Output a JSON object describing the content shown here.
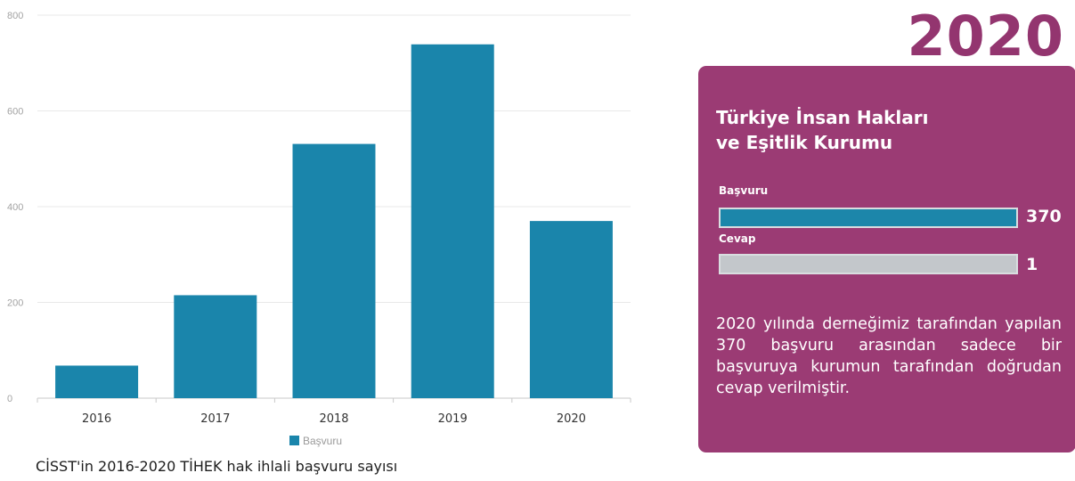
{
  "chart_data": {
    "type": "bar",
    "categories": [
      "2016",
      "2017",
      "2018",
      "2019",
      "2020"
    ],
    "series": [
      {
        "name": "Başvuru",
        "values": [
          68,
          215,
          531,
          739,
          370
        ],
        "color": "#1a85ab"
      }
    ],
    "ylim": [
      0,
      800
    ],
    "yticks": [
      0,
      200,
      400,
      600,
      800
    ],
    "grid": true,
    "legend_position": "bottom-center"
  },
  "caption": "CİSST'in 2016-2020 TİHEK hak ihlali başvuru sayısı",
  "side_panel": {
    "year": "2020",
    "title_lines": [
      "Türkiye İnsan Hakları",
      "ve Eşitlik Kurumu"
    ],
    "metrics": [
      {
        "label": "Başvuru",
        "value": 370,
        "value_text": "370",
        "fill_fraction": 1.0,
        "color": "#1c86aa"
      },
      {
        "label": "Cevap",
        "value": 1,
        "value_text": "1",
        "fill_fraction": 1.0,
        "color": "#c3c7cb"
      }
    ],
    "text": "2020 yılında derneğimiz tarafından yapılan 370 başvuru arasından sadece bir başvuruya kurumun tarafından doğrudan cevap verilmiştir.",
    "background_color": "#9b3b74",
    "year_color": "#93356f"
  }
}
